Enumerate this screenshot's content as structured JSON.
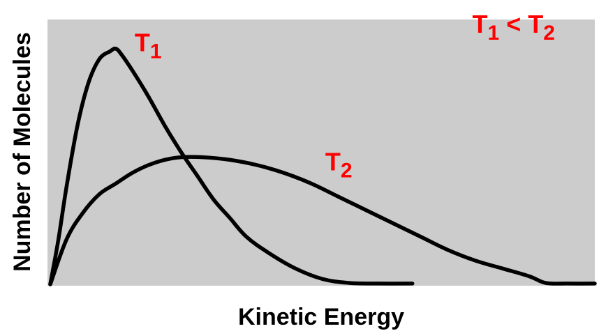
{
  "chart_data": {
    "type": "line",
    "xlabel": "Kinetic Energy",
    "ylabel": "Number of Molecules",
    "grid": false,
    "background_color": "#cccccc",
    "line_color": "#000000",
    "label_color": "#ff0000",
    "xlim": [
      0,
      100
    ],
    "ylim": [
      0,
      100
    ],
    "series": [
      {
        "name": "T1",
        "x": [
          0,
          1.5,
          3,
          5,
          7,
          9,
          11,
          12,
          13,
          15,
          18,
          21,
          24,
          27,
          30,
          33,
          36,
          40,
          45,
          50,
          55,
          60,
          66.5
        ],
        "y": [
          0,
          17,
          37,
          60,
          76,
          85,
          88,
          89,
          87,
          81,
          71,
          60,
          50,
          41,
          32,
          25,
          18,
          12,
          6,
          2,
          0.5,
          0.3,
          0.3
        ]
      },
      {
        "name": "T2",
        "x": [
          0,
          3,
          6,
          9,
          12,
          15,
          18,
          21,
          24,
          28,
          33,
          38,
          43,
          48,
          53,
          58,
          63,
          68,
          73,
          78,
          83,
          88,
          91,
          95,
          100
        ],
        "y": [
          0,
          17,
          27,
          34,
          38,
          42,
          45,
          47,
          48,
          48,
          47,
          45,
          42,
          38,
          33,
          28,
          23,
          18,
          13,
          9,
          6,
          3,
          0.5,
          0.3,
          0.3
        ]
      }
    ],
    "annotations": [
      {
        "id": "t1",
        "text": "T",
        "sub": "1",
        "x": 15.5,
        "y": 88
      },
      {
        "id": "t2",
        "text": "T",
        "sub": "2",
        "x": 50.5,
        "y": 43
      },
      {
        "id": "cmp",
        "text": "T",
        "sub": "1",
        "mid": " < ",
        "text2": "T",
        "sub2": "2",
        "x": 77.5,
        "y": 95
      }
    ]
  }
}
